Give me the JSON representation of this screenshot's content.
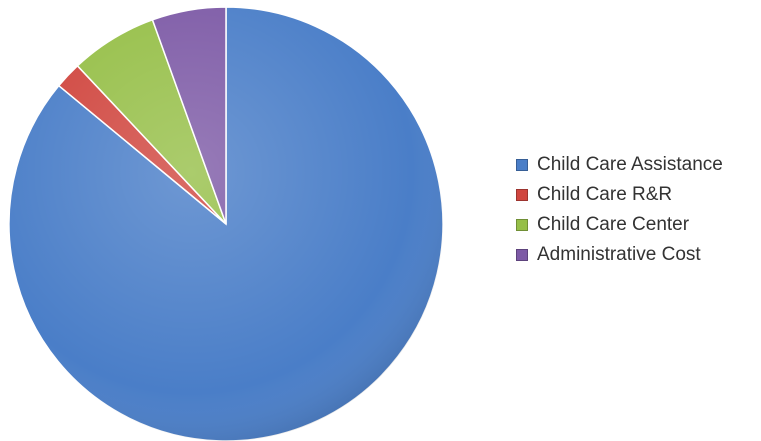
{
  "chart_data": {
    "type": "pie",
    "title": "",
    "start_angle_deg": 0,
    "direction": "clockwise",
    "slices": [
      {
        "label": "Child Care Assistance",
        "value": 86.0,
        "color": "#4a7ec8"
      },
      {
        "label": "Child Care R&R",
        "value": 2.0,
        "color": "#d0463f"
      },
      {
        "label": "Child Care Center",
        "value": 6.5,
        "color": "#96bf48"
      },
      {
        "label": "Administrative Cost",
        "value": 5.5,
        "color": "#7d5aa6"
      }
    ],
    "legend_position": "right"
  }
}
